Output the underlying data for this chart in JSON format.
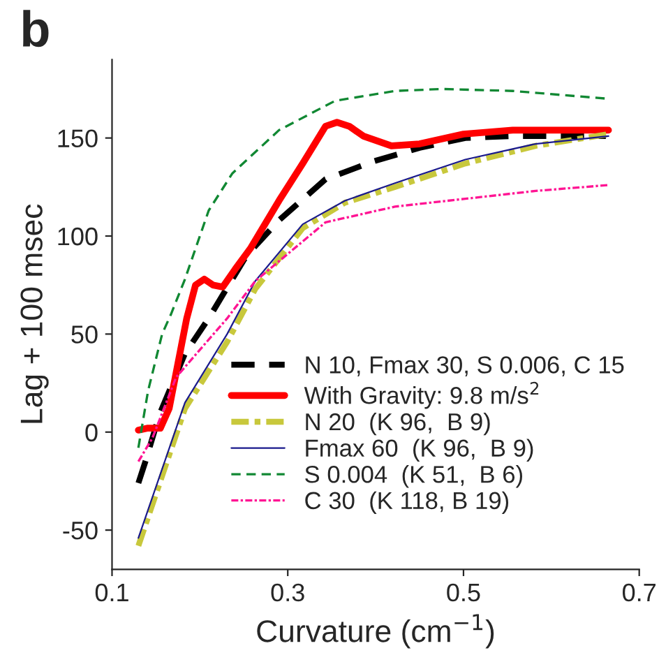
{
  "chart_data": {
    "type": "line",
    "title": "b",
    "xlabel": "Curvature (cm$^{−1}$)",
    "ylabel": "Lag + 100 msec",
    "xlim": [
      0.1,
      0.7
    ],
    "xticks": [
      0.1,
      0.3,
      0.5,
      0.7
    ],
    "ylim": [
      -70,
      190
    ],
    "yticks": [
      -50,
      0,
      50,
      100,
      150
    ],
    "grid": false,
    "legend": "bottom right",
    "marker": "none",
    "series": [
      {
        "name": "N 10, Fmax 30, S 0.006, C 15",
        "color": "#000000",
        "line_style": "dashed",
        "x": [
          0.13,
          0.138,
          0.154,
          0.183,
          0.21,
          0.253,
          0.29,
          0.343,
          0.397,
          0.45,
          0.502,
          0.556,
          0.662
        ],
        "values": [
          -26,
          -15,
          9,
          40,
          58,
          90,
          108,
          129,
          138,
          145,
          150,
          151,
          151
        ]
      },
      {
        "name": "With Gravity: 9.8 m/s$^{2}$",
        "color": "#ff0000",
        "line_style": "solid",
        "x": [
          0.13,
          0.14,
          0.155,
          0.165,
          0.175,
          0.185,
          0.195,
          0.205,
          0.215,
          0.226,
          0.24,
          0.258,
          0.29,
          0.317,
          0.343,
          0.356,
          0.37,
          0.386,
          0.418,
          0.45,
          0.5,
          0.556,
          0.6,
          0.665
        ],
        "values": [
          1,
          2,
          2,
          12,
          35,
          58,
          75,
          78,
          75,
          74,
          83,
          94,
          118,
          137,
          156,
          158,
          156,
          151,
          146,
          147,
          152,
          154,
          154,
          154
        ]
      },
      {
        "name": "N 20  (K 96,  B 9)",
        "color": "#c8c83c",
        "line_style": "dashdot",
        "x": [
          0.13,
          0.183,
          0.231,
          0.263,
          0.317,
          0.365,
          0.422,
          0.502,
          0.582,
          0.665
        ],
        "values": [
          -58,
          12,
          46,
          73,
          104,
          117,
          125,
          137,
          146,
          152
        ]
      },
      {
        "name": "Fmax 60  (K 96,  B 9)",
        "color": "#1a1a8c",
        "line_style": "solid",
        "x": [
          0.13,
          0.183,
          0.231,
          0.263,
          0.317,
          0.365,
          0.422,
          0.502,
          0.582,
          0.665
        ],
        "values": [
          -54,
          15,
          50,
          77,
          106,
          118,
          127,
          139,
          147,
          151
        ]
      },
      {
        "name": "S 0.004  (K 51,  B 6)",
        "color": "#118833",
        "line_style": "dashed",
        "x": [
          0.13,
          0.141,
          0.157,
          0.167,
          0.183,
          0.21,
          0.237,
          0.29,
          0.354,
          0.422,
          0.476,
          0.556,
          0.665
        ],
        "values": [
          -8,
          21,
          50,
          60,
          78,
          113,
          132,
          154,
          169,
          174,
          175,
          174,
          170
        ]
      },
      {
        "name": "C 30  (K 118, B 19)",
        "color": "#ff1493",
        "line_style": "dashdot",
        "x": [
          0.13,
          0.146,
          0.173,
          0.2,
          0.231,
          0.263,
          0.343,
          0.422,
          0.502,
          0.582,
          0.665
        ],
        "values": [
          -15,
          -3,
          28,
          42,
          58,
          77,
          107,
          115,
          119,
          123,
          126
        ]
      }
    ]
  }
}
